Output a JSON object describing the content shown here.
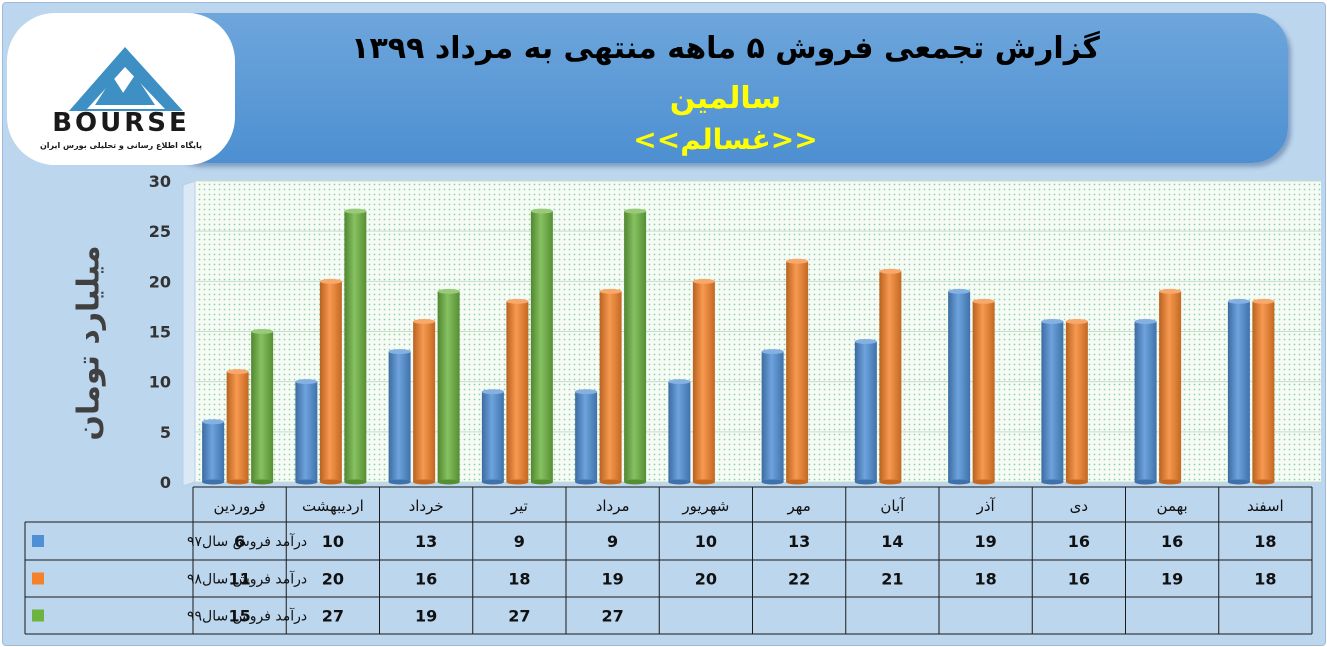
{
  "header": {
    "title": "گزارش تجمعی فروش ۵ ماهه منتهی به مرداد ۱۳۹۹",
    "company": "سالمین",
    "symbol": "<<غسالم>>"
  },
  "logo": {
    "brand": "BOURSE",
    "tagline": "پایگاه اطلاع رسانی و تحلیلی بورس ایران"
  },
  "colors": {
    "series": [
      "#4f8fd6",
      "#f5822a",
      "#6cb33f"
    ],
    "banner": "#5a99d6",
    "title_highlight": "#ffff00"
  },
  "chart_data": {
    "type": "bar",
    "ylabel": "میلیارد تومان",
    "ylim": [
      0,
      30
    ],
    "yticks": [
      0,
      5,
      10,
      15,
      20,
      25,
      30
    ],
    "grid": true,
    "categories": [
      "فروردین",
      "اردیبهشت",
      "خرداد",
      "تیر",
      "مرداد",
      "شهریور",
      "مهر",
      "آبان",
      "آذر",
      "دی",
      "بهمن",
      "اسفند"
    ],
    "series": [
      {
        "name": "درآمد فروش سال۹۷",
        "values": [
          6,
          10,
          13,
          9,
          9,
          10,
          13,
          14,
          19,
          16,
          16,
          18
        ]
      },
      {
        "name": "درآمد فروش سال۹۸",
        "values": [
          11,
          20,
          16,
          18,
          19,
          20,
          22,
          21,
          18,
          16,
          19,
          18
        ]
      },
      {
        "name": "درآمد فروش سال۹۹",
        "values": [
          15,
          27,
          19,
          27,
          27,
          null,
          null,
          null,
          null,
          null,
          null,
          null
        ]
      }
    ]
  }
}
